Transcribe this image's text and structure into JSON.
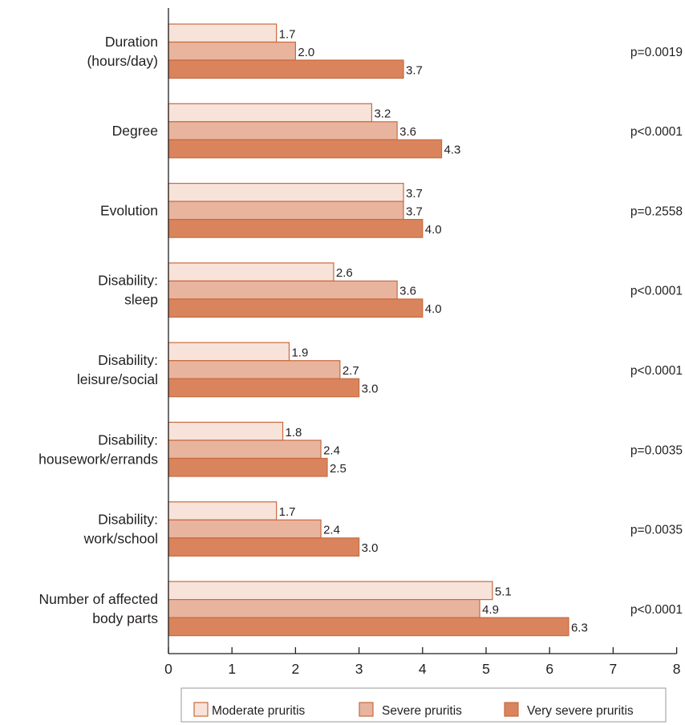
{
  "chart_data": {
    "type": "bar",
    "orientation": "horizontal",
    "categories": [
      [
        "Duration",
        "(hours/day)"
      ],
      [
        "Degree"
      ],
      [
        "Evolution"
      ],
      [
        "Disability:",
        "sleep"
      ],
      [
        "Disability:",
        "leisure/social"
      ],
      [
        "Disability:",
        "housework/errands"
      ],
      [
        "Disability:",
        "work/school"
      ],
      [
        "Number of affected",
        "body parts"
      ]
    ],
    "series": [
      {
        "name": "Moderate pruritis",
        "values": [
          1.7,
          3.2,
          3.7,
          2.6,
          1.9,
          1.8,
          1.7,
          5.1
        ]
      },
      {
        "name": "Severe pruritis",
        "values": [
          2.0,
          3.6,
          3.7,
          3.6,
          2.7,
          2.4,
          2.4,
          4.9
        ]
      },
      {
        "name": "Very severe pruritis",
        "values": [
          3.7,
          4.3,
          4.0,
          4.0,
          3.0,
          2.5,
          3.0,
          6.3
        ]
      }
    ],
    "value_labels": [
      [
        "1.7",
        "3.2",
        "3.7",
        "2.6",
        "1.9",
        "1.8",
        "1.7",
        "5.1"
      ],
      [
        "2.0",
        "3.6",
        "3.7",
        "3.6",
        "2.7",
        "2.4",
        "2.4",
        "4.9"
      ],
      [
        "3.7",
        "4.3",
        "4.0",
        "4.0",
        "3.0",
        "2.5",
        "3.0",
        "6.3"
      ]
    ],
    "p_values": [
      "p=0.0019",
      "p<0.0001",
      "p=0.2558",
      "p<0.0001",
      "p<0.0001",
      "p=0.0035",
      "p=0.0035",
      "p<0.0001"
    ],
    "xlim": [
      0,
      8
    ],
    "xticks": [
      0,
      1,
      2,
      3,
      4,
      5,
      6,
      7,
      8
    ],
    "xlabel": "",
    "ylabel": "",
    "grid": false,
    "legend_position": "bottom-right",
    "colors": {
      "Moderate pruritis": "#f7e3d9",
      "Severe pruritis": "#e8b49e",
      "Very severe pruritis": "#d9845c",
      "stroke": "#c86a3f",
      "axis": "#231f20"
    }
  }
}
